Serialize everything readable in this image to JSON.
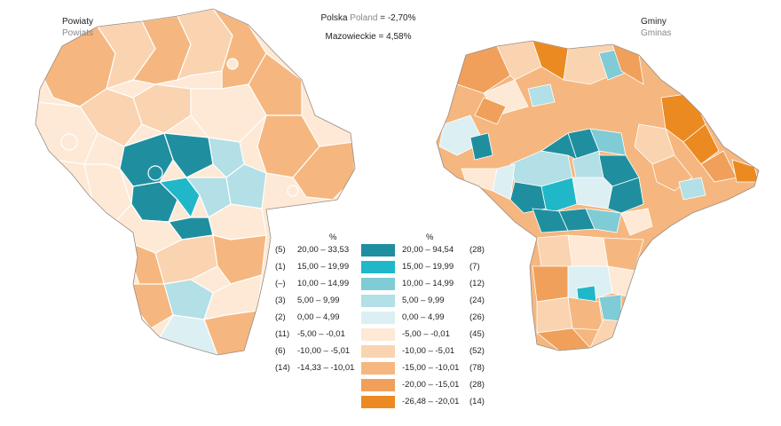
{
  "headers": {
    "left_map": {
      "title_pl": "Powiaty",
      "title_en": "Powiats"
    },
    "right_map": {
      "title_pl": "Gminy",
      "title_en": "Gminas"
    },
    "poland": {
      "label_pl": "Polska",
      "label_en": "Poland",
      "value": "= -2,70%"
    },
    "mazowieckie": {
      "label": "Mazowieckie",
      "value": "= 4,58%"
    }
  },
  "legend": {
    "unit_left": "%",
    "unit_right": "%",
    "classes": [
      {
        "color": "#1f8fa0",
        "left_count": "(5)",
        "left_range": "20,00 – 33,53",
        "right_range": "20,00 – 94,54",
        "right_count": "(28)"
      },
      {
        "color": "#20b8c8",
        "left_count": "(1)",
        "left_range": "15,00 – 19,99",
        "right_range": "15,00 – 19,99",
        "right_count": "(7)"
      },
      {
        "color": "#7fcbd6",
        "left_count": "(–)",
        "left_range": "10,00 – 14,99",
        "right_range": "10,00 – 14,99",
        "right_count": "(12)"
      },
      {
        "color": "#b3dfe6",
        "left_count": "(3)",
        "left_range": "5,00 – 9,99",
        "right_range": "5,00 – 9,99",
        "right_count": "(24)"
      },
      {
        "color": "#dcf0f3",
        "left_count": "(2)",
        "left_range": "0,00 – 4,99",
        "right_range": "0,00 – 4,99",
        "right_count": "(26)"
      },
      {
        "color": "#fde9d6",
        "left_count": "(11)",
        "left_range": "-5,00 – -0,01",
        "right_range": "-5,00 – -0,01",
        "right_count": "(45)"
      },
      {
        "color": "#fad3b0",
        "left_count": "(6)",
        "left_range": "-10,00 – -5,01",
        "right_range": "-10,00 – -5,01",
        "right_count": "(52)"
      },
      {
        "color": "#f5b77f",
        "left_count": "(14)",
        "left_range": "-14,33 – -10,01",
        "right_range": "-15,00 – -10,01",
        "right_count": "(78)"
      },
      {
        "color": "#f0a05a",
        "left_count": "",
        "left_range": "",
        "right_range": "-20,00 – -15,01",
        "right_count": "(28)"
      },
      {
        "color": "#ec8a22",
        "left_count": "",
        "left_range": "",
        "right_range": "-26,48 – -20,01",
        "right_count": "(14)"
      }
    ]
  }
}
